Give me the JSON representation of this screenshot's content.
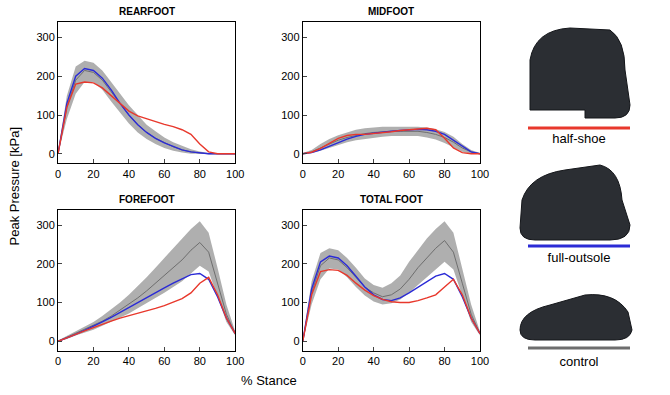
{
  "figure": {
    "xlabel": "% Stance",
    "ylabel": "Peak Pressure [kPa]"
  },
  "chart_data": [
    {
      "type": "line",
      "title": "REARFOOT",
      "x": [
        0,
        5,
        10,
        15,
        20,
        25,
        30,
        35,
        40,
        45,
        50,
        55,
        60,
        65,
        70,
        75,
        80,
        85,
        90,
        95,
        100
      ],
      "xlim": [
        0,
        100
      ],
      "xticks": [
        0,
        20,
        40,
        60,
        80,
        100
      ],
      "ylim": [
        -25,
        340
      ],
      "yticks": [
        0,
        100,
        200,
        300
      ],
      "series": [
        {
          "name": "half-shoe",
          "color": "#e8382c",
          "values": [
            0,
            120,
            180,
            185,
            183,
            170,
            150,
            130,
            110,
            98,
            90,
            82,
            76,
            70,
            62,
            50,
            25,
            5,
            0,
            0,
            0
          ]
        },
        {
          "name": "full-outsole",
          "color": "#2b2bd6",
          "values": [
            0,
            130,
            200,
            220,
            215,
            195,
            165,
            130,
            100,
            75,
            55,
            40,
            28,
            18,
            10,
            5,
            2,
            0,
            0,
            0,
            0
          ]
        },
        {
          "name": "control",
          "color": "#6e6e6e",
          "values": [
            0,
            120,
            190,
            215,
            210,
            190,
            160,
            130,
            100,
            75,
            55,
            40,
            28,
            18,
            10,
            5,
            2,
            0,
            0,
            0,
            0
          ],
          "lower": [
            0,
            90,
            155,
            185,
            185,
            165,
            135,
            105,
            78,
            55,
            38,
            25,
            15,
            8,
            3,
            0,
            0,
            0,
            0,
            0,
            0
          ],
          "upper": [
            5,
            150,
            225,
            240,
            235,
            215,
            185,
            155,
            125,
            100,
            75,
            58,
            42,
            30,
            20,
            12,
            6,
            2,
            0,
            0,
            0
          ]
        }
      ]
    },
    {
      "type": "line",
      "title": "MIDFOOT",
      "x": [
        0,
        5,
        10,
        15,
        20,
        25,
        30,
        35,
        40,
        45,
        50,
        55,
        60,
        65,
        70,
        75,
        80,
        85,
        90,
        95,
        100
      ],
      "xlim": [
        0,
        100
      ],
      "xticks": [
        0,
        20,
        40,
        60,
        80,
        100
      ],
      "ylim": [
        -25,
        340
      ],
      "yticks": [
        0,
        100,
        200,
        300
      ],
      "series": [
        {
          "name": "half-shoe",
          "color": "#e8382c",
          "values": [
            0,
            4,
            14,
            28,
            40,
            47,
            50,
            50,
            52,
            54,
            57,
            60,
            62,
            64,
            66,
            62,
            40,
            15,
            3,
            0,
            0
          ]
        },
        {
          "name": "full-outsole",
          "color": "#2b2bd6",
          "values": [
            0,
            3,
            10,
            20,
            30,
            38,
            45,
            50,
            53,
            56,
            58,
            60,
            62,
            63,
            62,
            58,
            50,
            35,
            18,
            5,
            0
          ]
        },
        {
          "name": "control",
          "color": "#6e6e6e",
          "values": [
            0,
            5,
            15,
            25,
            35,
            42,
            48,
            52,
            55,
            57,
            58,
            58,
            58,
            58,
            55,
            50,
            42,
            30,
            15,
            5,
            0
          ],
          "lower": [
            0,
            2,
            8,
            15,
            24,
            30,
            35,
            38,
            42,
            44,
            46,
            46,
            46,
            46,
            42,
            37,
            28,
            16,
            5,
            0,
            0
          ],
          "upper": [
            2,
            10,
            25,
            38,
            48,
            56,
            62,
            66,
            68,
            70,
            70,
            70,
            70,
            70,
            68,
            63,
            56,
            44,
            25,
            10,
            2
          ]
        }
      ]
    },
    {
      "type": "line",
      "title": "FOREFOOT",
      "x": [
        0,
        5,
        10,
        15,
        20,
        25,
        30,
        35,
        40,
        45,
        50,
        55,
        60,
        65,
        70,
        75,
        80,
        85,
        90,
        95,
        100
      ],
      "xlim": [
        0,
        100
      ],
      "xticks": [
        0,
        20,
        40,
        60,
        80,
        100
      ],
      "ylim": [
        -25,
        340
      ],
      "yticks": [
        0,
        100,
        200,
        300
      ],
      "series": [
        {
          "name": "half-shoe",
          "color": "#e8382c",
          "values": [
            0,
            8,
            18,
            27,
            36,
            45,
            52,
            60,
            66,
            72,
            78,
            85,
            92,
            100,
            110,
            125,
            150,
            165,
            120,
            60,
            20
          ]
        },
        {
          "name": "full-outsole",
          "color": "#2b2bd6",
          "values": [
            0,
            8,
            18,
            28,
            38,
            50,
            62,
            75,
            88,
            100,
            112,
            125,
            138,
            150,
            162,
            172,
            175,
            160,
            115,
            60,
            20
          ]
        },
        {
          "name": "control",
          "color": "#6e6e6e",
          "values": [
            0,
            10,
            20,
            30,
            40,
            52,
            65,
            80,
            95,
            112,
            130,
            150,
            170,
            190,
            210,
            235,
            255,
            230,
            150,
            70,
            20
          ],
          "lower": [
            0,
            6,
            15,
            22,
            30,
            40,
            50,
            62,
            72,
            85,
            98,
            112,
            125,
            140,
            155,
            175,
            195,
            180,
            115,
            50,
            15
          ],
          "upper": [
            2,
            14,
            25,
            38,
            50,
            65,
            82,
            100,
            120,
            142,
            165,
            190,
            215,
            240,
            265,
            290,
            310,
            280,
            190,
            95,
            25
          ]
        }
      ]
    },
    {
      "type": "line",
      "title": "TOTAL FOOT",
      "x": [
        0,
        5,
        10,
        15,
        20,
        25,
        30,
        35,
        40,
        45,
        50,
        55,
        60,
        65,
        70,
        75,
        80,
        85,
        90,
        95,
        100
      ],
      "xlim": [
        0,
        100
      ],
      "xticks": [
        0,
        20,
        40,
        60,
        80,
        100
      ],
      "ylim": [
        -25,
        340
      ],
      "yticks": [
        0,
        100,
        200,
        300
      ],
      "series": [
        {
          "name": "half-shoe",
          "color": "#e8382c",
          "values": [
            0,
            120,
            180,
            185,
            183,
            170,
            150,
            132,
            118,
            108,
            102,
            100,
            100,
            105,
            112,
            120,
            140,
            160,
            120,
            60,
            20
          ]
        },
        {
          "name": "full-outsole",
          "color": "#2b2bd6",
          "values": [
            0,
            135,
            205,
            220,
            215,
            195,
            168,
            140,
            120,
            108,
            105,
            112,
            125,
            140,
            155,
            168,
            175,
            160,
            115,
            60,
            20
          ]
        },
        {
          "name": "control",
          "color": "#6e6e6e",
          "values": [
            0,
            125,
            195,
            215,
            210,
            190,
            165,
            140,
            125,
            115,
            120,
            135,
            160,
            190,
            215,
            240,
            260,
            230,
            150,
            70,
            20
          ],
          "lower": [
            0,
            95,
            160,
            188,
            185,
            165,
            140,
            118,
            103,
            95,
            98,
            108,
            125,
            145,
            165,
            185,
            205,
            185,
            115,
            50,
            15
          ],
          "upper": [
            5,
            155,
            228,
            240,
            235,
            215,
            190,
            162,
            145,
            138,
            150,
            170,
            205,
            235,
            265,
            290,
            310,
            280,
            190,
            95,
            25
          ]
        }
      ]
    }
  ]
}
